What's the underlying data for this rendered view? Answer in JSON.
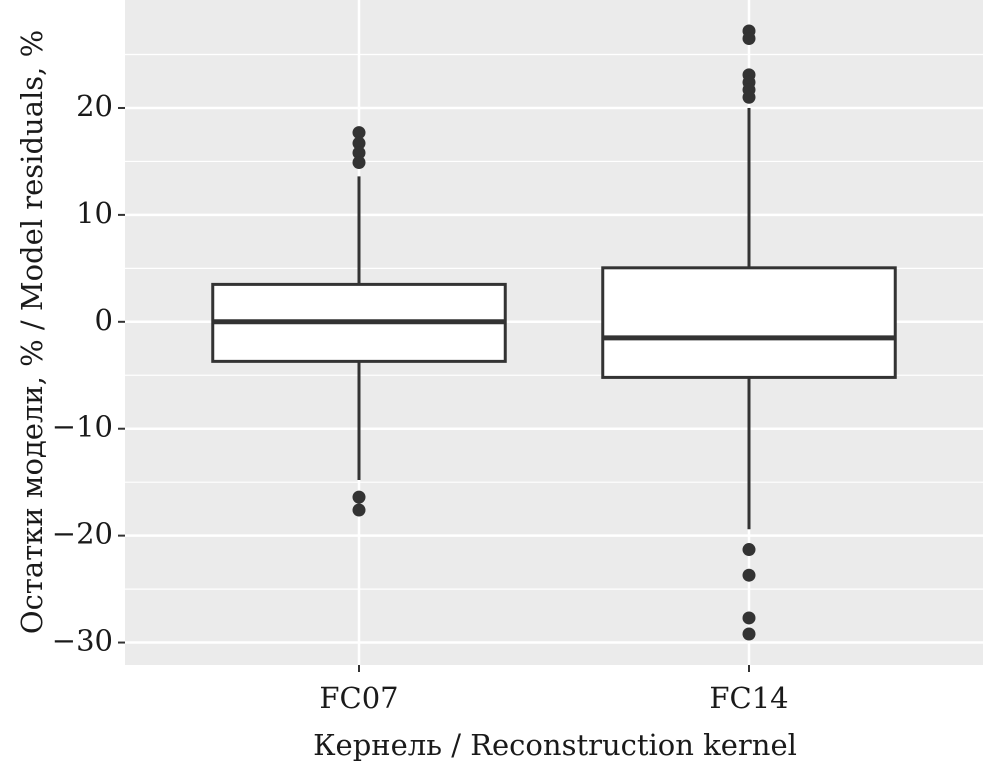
{
  "chart_data": {
    "type": "boxplot",
    "x_label": "Кернель / Reconstruction kernel",
    "y_label": "Остатки модели, % / Model residuals, %",
    "categories": [
      "FC07",
      "FC14"
    ],
    "boxes": [
      {
        "whisker_low": -14.8,
        "q1": -3.7,
        "median": 0,
        "q3": 3.5,
        "whisker_high": 13.6,
        "outliers": [
          17.7,
          16.7,
          15.8,
          14.9,
          -16.4,
          -17.6
        ]
      },
      {
        "whisker_low": -19.4,
        "q1": -5.2,
        "median": -1.5,
        "q3": 5.05,
        "whisker_high": 20,
        "outliers": [
          27.2,
          26.5,
          23.1,
          22.4,
          21.7,
          21.0,
          -21.3,
          -23.7,
          -27.7,
          -29.2
        ]
      }
    ],
    "ylim": [
      -32.1,
      30.1
    ],
    "yticks": [
      {
        "value": -30,
        "label": "−30"
      },
      {
        "value": -20,
        "label": "−20"
      },
      {
        "value": -10,
        "label": "−10"
      },
      0,
      10,
      20
    ],
    "minor_yticks": [
      -25,
      -15,
      -5,
      5,
      15,
      25
    ],
    "grid": true,
    "panel_color": "#ebebeb",
    "box_fill": "#ffffff",
    "line_color": "#333333"
  }
}
